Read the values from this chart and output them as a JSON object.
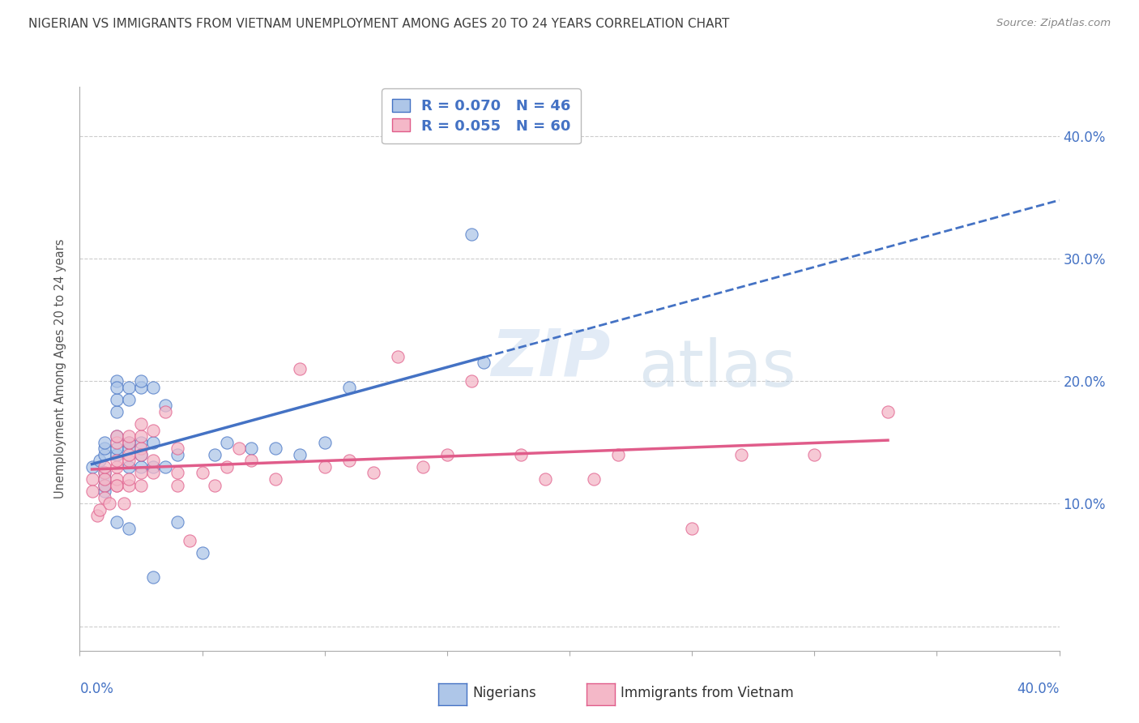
{
  "title": "NIGERIAN VS IMMIGRANTS FROM VIETNAM UNEMPLOYMENT AMONG AGES 20 TO 24 YEARS CORRELATION CHART",
  "source": "Source: ZipAtlas.com",
  "ylabel": "Unemployment Among Ages 20 to 24 years",
  "ytick_values": [
    0.0,
    0.1,
    0.2,
    0.3,
    0.4
  ],
  "xlim": [
    0.0,
    0.4
  ],
  "ylim": [
    -0.02,
    0.44
  ],
  "watermark_zip": "ZIP",
  "watermark_atlas": "atlas",
  "legend_blue_r": "R = 0.070",
  "legend_blue_n": "N = 46",
  "legend_pink_r": "R = 0.055",
  "legend_pink_n": "N = 60",
  "blue_fill_color": "#aec6e8",
  "pink_fill_color": "#f4b8c8",
  "blue_edge_color": "#4472c4",
  "pink_edge_color": "#e05c8a",
  "blue_line_color": "#4472c4",
  "pink_line_color": "#e05c8a",
  "title_color": "#404040",
  "source_color": "#888888",
  "grid_color": "#cccccc",
  "nigerians_x": [
    0.005,
    0.008,
    0.01,
    0.01,
    0.01,
    0.01,
    0.01,
    0.01,
    0.01,
    0.015,
    0.015,
    0.015,
    0.015,
    0.015,
    0.015,
    0.015,
    0.015,
    0.02,
    0.02,
    0.02,
    0.02,
    0.02,
    0.02,
    0.025,
    0.025,
    0.025,
    0.025,
    0.025,
    0.03,
    0.03,
    0.03,
    0.03,
    0.035,
    0.035,
    0.04,
    0.04,
    0.05,
    0.055,
    0.06,
    0.07,
    0.08,
    0.09,
    0.1,
    0.11,
    0.16,
    0.165
  ],
  "nigerians_y": [
    0.13,
    0.135,
    0.14,
    0.145,
    0.15,
    0.12,
    0.11,
    0.125,
    0.115,
    0.14,
    0.145,
    0.155,
    0.175,
    0.185,
    0.2,
    0.195,
    0.085,
    0.13,
    0.145,
    0.15,
    0.195,
    0.185,
    0.08,
    0.13,
    0.14,
    0.15,
    0.195,
    0.2,
    0.13,
    0.15,
    0.195,
    0.04,
    0.13,
    0.18,
    0.14,
    0.085,
    0.06,
    0.14,
    0.15,
    0.145,
    0.145,
    0.14,
    0.15,
    0.195,
    0.32,
    0.215
  ],
  "vietnam_x": [
    0.005,
    0.005,
    0.007,
    0.008,
    0.01,
    0.01,
    0.01,
    0.01,
    0.01,
    0.012,
    0.015,
    0.015,
    0.015,
    0.015,
    0.015,
    0.015,
    0.015,
    0.018,
    0.02,
    0.02,
    0.02,
    0.02,
    0.02,
    0.02,
    0.025,
    0.025,
    0.025,
    0.025,
    0.025,
    0.025,
    0.03,
    0.03,
    0.03,
    0.035,
    0.04,
    0.04,
    0.04,
    0.045,
    0.05,
    0.055,
    0.06,
    0.065,
    0.07,
    0.08,
    0.09,
    0.1,
    0.11,
    0.12,
    0.13,
    0.14,
    0.15,
    0.16,
    0.18,
    0.19,
    0.21,
    0.22,
    0.25,
    0.27,
    0.3,
    0.33
  ],
  "vietnam_y": [
    0.12,
    0.11,
    0.09,
    0.095,
    0.125,
    0.115,
    0.12,
    0.13,
    0.105,
    0.1,
    0.115,
    0.12,
    0.13,
    0.135,
    0.15,
    0.155,
    0.115,
    0.1,
    0.115,
    0.12,
    0.135,
    0.14,
    0.15,
    0.155,
    0.115,
    0.125,
    0.145,
    0.14,
    0.155,
    0.165,
    0.125,
    0.135,
    0.16,
    0.175,
    0.115,
    0.125,
    0.145,
    0.07,
    0.125,
    0.115,
    0.13,
    0.145,
    0.135,
    0.12,
    0.21,
    0.13,
    0.135,
    0.125,
    0.22,
    0.13,
    0.14,
    0.2,
    0.14,
    0.12,
    0.12,
    0.14,
    0.08,
    0.14,
    0.14,
    0.175
  ]
}
